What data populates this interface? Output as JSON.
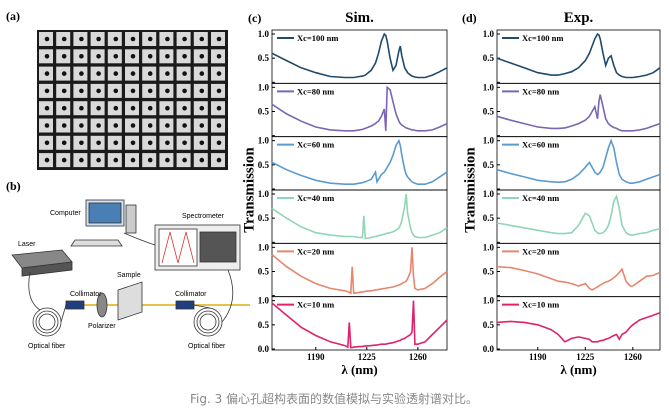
{
  "figure": {
    "panel_labels": [
      "(a)",
      "(b)"
    ],
    "caption": "Fig. 3 偏心孔超构表面的数值模拟与实验透射谱对比。"
  },
  "setup": {
    "computer": "Computer",
    "laser": "Laser",
    "spectrometer": "Spectrometer",
    "sample": "Sample",
    "collimator_left": "Collimator",
    "collimator_right": "Collimator",
    "polarizer": "Polarizer",
    "fiber_left": "Optical fiber",
    "fiber_right": "Optical fiber"
  },
  "chart_data": [
    {
      "type": "line",
      "panel_label": "(c)",
      "title": "Sim.",
      "xlabel": "λ (nm)",
      "ylabel": "Transmission",
      "x": [
        1160,
        1170,
        1180,
        1190,
        1200,
        1210,
        1212,
        1213,
        1214,
        1215,
        1216,
        1220,
        1222,
        1223,
        1224,
        1228,
        1231,
        1232,
        1233,
        1235,
        1237,
        1238,
        1239,
        1241,
        1243,
        1245,
        1247,
        1248,
        1249,
        1251,
        1252,
        1253,
        1255,
        1256,
        1257,
        1258,
        1260,
        1265,
        1270,
        1275,
        1280
      ],
      "xlim": [
        1160,
        1280
      ],
      "xticks": [
        1190,
        1225,
        1260
      ],
      "ylim": [
        0,
        1
      ],
      "yticks": [
        {
          "value": 0,
          "label": "0.0"
        },
        {
          "value": 0.5,
          "label": "0.5"
        },
        {
          "value": 1,
          "label": "1.0"
        }
      ],
      "series": [
        {
          "name": "Xc=100 nm",
          "color": "#1f4a6b",
          "values": [
            0.6,
            0.45,
            0.3,
            0.2,
            0.12,
            0.1,
            0.1,
            0.1,
            0.1,
            0.1,
            0.1,
            0.12,
            0.13,
            0.14,
            0.15,
            0.25,
            0.4,
            0.5,
            0.6,
            0.85,
            1.0,
            0.97,
            0.85,
            0.5,
            0.25,
            0.35,
            0.65,
            0.75,
            0.55,
            0.3,
            0.25,
            0.2,
            0.15,
            0.13,
            0.12,
            0.11,
            0.1,
            0.1,
            0.15,
            0.22,
            0.3
          ]
        },
        {
          "name": "Xc=80 nm",
          "color": "#7a66b3",
          "values": [
            0.65,
            0.45,
            0.3,
            0.18,
            0.12,
            0.1,
            0.1,
            0.1,
            0.1,
            0.1,
            0.1,
            0.12,
            0.13,
            0.14,
            0.15,
            0.2,
            0.25,
            0.28,
            0.3,
            0.4,
            0.55,
            0.1,
            1.0,
            0.95,
            0.7,
            0.45,
            0.3,
            0.25,
            0.22,
            0.18,
            0.16,
            0.15,
            0.13,
            0.12,
            0.12,
            0.11,
            0.1,
            0.1,
            0.12,
            0.18,
            0.25
          ]
        },
        {
          "name": "Xc=60 nm",
          "color": "#5b9bd0",
          "values": [
            0.55,
            0.4,
            0.28,
            0.18,
            0.12,
            0.1,
            0.1,
            0.1,
            0.1,
            0.1,
            0.1,
            0.12,
            0.13,
            0.14,
            0.15,
            0.2,
            0.35,
            0.15,
            0.2,
            0.3,
            0.35,
            0.4,
            0.45,
            0.55,
            0.7,
            0.9,
            1.0,
            0.9,
            0.7,
            0.4,
            0.3,
            0.25,
            0.18,
            0.15,
            0.13,
            0.12,
            0.1,
            0.1,
            0.15,
            0.25,
            0.35
          ]
        },
        {
          "name": "Xc=40 nm",
          "color": "#8fd6b6",
          "values": [
            0.7,
            0.5,
            0.32,
            0.2,
            0.15,
            0.12,
            0.12,
            0.12,
            0.12,
            0.12,
            0.12,
            0.1,
            0.1,
            0.55,
            0.08,
            0.1,
            0.12,
            0.13,
            0.14,
            0.15,
            0.17,
            0.18,
            0.19,
            0.2,
            0.22,
            0.25,
            0.3,
            0.35,
            0.45,
            0.75,
            1.0,
            0.6,
            0.3,
            0.2,
            0.15,
            0.12,
            0.1,
            0.1,
            0.15,
            0.2,
            0.3
          ]
        },
        {
          "name": "Xc=20 nm",
          "color": "#e8866c",
          "values": [
            0.85,
            0.6,
            0.4,
            0.25,
            0.15,
            0.1,
            0.08,
            0.07,
            0.05,
            0.6,
            0.05,
            0.07,
            0.08,
            0.08,
            0.09,
            0.1,
            0.12,
            0.12,
            0.13,
            0.14,
            0.15,
            0.15,
            0.16,
            0.17,
            0.18,
            0.2,
            0.22,
            0.23,
            0.25,
            0.28,
            0.3,
            0.35,
            0.5,
            1.0,
            0.4,
            0.15,
            0.12,
            0.15,
            0.25,
            0.38,
            0.5
          ]
        },
        {
          "name": "Xc=10 nm",
          "color": "#e0226b",
          "values": [
            0.95,
            0.7,
            0.45,
            0.28,
            0.15,
            0.07,
            0.04,
            0.55,
            0.03,
            0.03,
            0.04,
            0.05,
            0.05,
            0.06,
            0.06,
            0.07,
            0.08,
            0.08,
            0.09,
            0.1,
            0.1,
            0.1,
            0.11,
            0.12,
            0.13,
            0.15,
            0.17,
            0.18,
            0.2,
            0.22,
            0.24,
            0.26,
            0.3,
            0.35,
            1.0,
            0.1,
            0.1,
            0.15,
            0.3,
            0.45,
            0.6
          ]
        }
      ]
    },
    {
      "type": "line",
      "panel_label": "(d)",
      "title": "Exp.",
      "xlabel": "λ (nm)",
      "ylabel": "Transmission",
      "x": [
        1160,
        1170,
        1180,
        1190,
        1200,
        1205,
        1210,
        1215,
        1220,
        1225,
        1228,
        1230,
        1232,
        1234,
        1235,
        1236,
        1238,
        1240,
        1242,
        1244,
        1246,
        1248,
        1250,
        1252,
        1255,
        1258,
        1260,
        1265,
        1270,
        1275,
        1280
      ],
      "xlim": [
        1160,
        1280
      ],
      "xticks": [
        1190,
        1225,
        1260
      ],
      "ylim": [
        0,
        1
      ],
      "yticks": [
        {
          "value": 0,
          "label": "0.0"
        },
        {
          "value": 0.5,
          "label": "0.5"
        },
        {
          "value": 1,
          "label": "1.0"
        }
      ],
      "series": [
        {
          "name": "Xc=100 nm",
          "color": "#1f4a6b",
          "values": [
            0.5,
            0.4,
            0.3,
            0.2,
            0.15,
            0.15,
            0.18,
            0.22,
            0.3,
            0.45,
            0.6,
            0.75,
            0.9,
            1.0,
            0.98,
            0.9,
            0.6,
            0.35,
            0.5,
            0.55,
            0.35,
            0.2,
            0.15,
            0.12,
            0.1,
            0.1,
            0.1,
            0.12,
            0.15,
            0.2,
            0.3
          ]
        },
        {
          "name": "Xc=80 nm",
          "color": "#7a66b3",
          "values": [
            0.4,
            0.32,
            0.25,
            0.18,
            0.15,
            0.15,
            0.16,
            0.2,
            0.25,
            0.32,
            0.4,
            0.5,
            0.6,
            0.35,
            0.7,
            0.85,
            0.6,
            0.35,
            0.25,
            0.2,
            0.17,
            0.15,
            0.12,
            0.1,
            0.1,
            0.1,
            0.1,
            0.12,
            0.15,
            0.2,
            0.25
          ]
        },
        {
          "name": "Xc=60 nm",
          "color": "#5b9bd0",
          "values": [
            0.4,
            0.32,
            0.25,
            0.18,
            0.15,
            0.14,
            0.15,
            0.2,
            0.3,
            0.45,
            0.55,
            0.45,
            0.35,
            0.3,
            0.32,
            0.35,
            0.45,
            0.65,
            0.85,
            1.0,
            0.85,
            0.55,
            0.3,
            0.2,
            0.15,
            0.12,
            0.12,
            0.15,
            0.2,
            0.25,
            0.3
          ]
        },
        {
          "name": "Xc=40 nm",
          "color": "#8fd6b6",
          "values": [
            0.4,
            0.35,
            0.3,
            0.25,
            0.2,
            0.18,
            0.18,
            0.2,
            0.35,
            0.6,
            0.55,
            0.4,
            0.25,
            0.2,
            0.18,
            0.18,
            0.2,
            0.25,
            0.35,
            0.55,
            0.85,
            0.95,
            0.7,
            0.35,
            0.2,
            0.15,
            0.15,
            0.18,
            0.2,
            0.25,
            0.28
          ]
        },
        {
          "name": "Xc=20 nm",
          "color": "#e8866c",
          "values": [
            0.6,
            0.58,
            0.52,
            0.45,
            0.35,
            0.3,
            0.28,
            0.25,
            0.2,
            0.25,
            0.15,
            0.12,
            0.15,
            0.18,
            0.2,
            0.22,
            0.25,
            0.28,
            0.3,
            0.33,
            0.37,
            0.42,
            0.48,
            0.55,
            0.3,
            0.2,
            0.2,
            0.3,
            0.4,
            0.42,
            0.48
          ]
        },
        {
          "name": "Xc=10 nm",
          "color": "#e0226b",
          "values": [
            0.55,
            0.57,
            0.55,
            0.5,
            0.4,
            0.3,
            0.15,
            0.22,
            0.25,
            0.22,
            0.2,
            0.15,
            0.15,
            0.15,
            0.16,
            0.17,
            0.18,
            0.2,
            0.22,
            0.25,
            0.28,
            0.3,
            0.2,
            0.3,
            0.35,
            0.45,
            0.5,
            0.6,
            0.65,
            0.7,
            0.75
          ]
        }
      ]
    }
  ]
}
